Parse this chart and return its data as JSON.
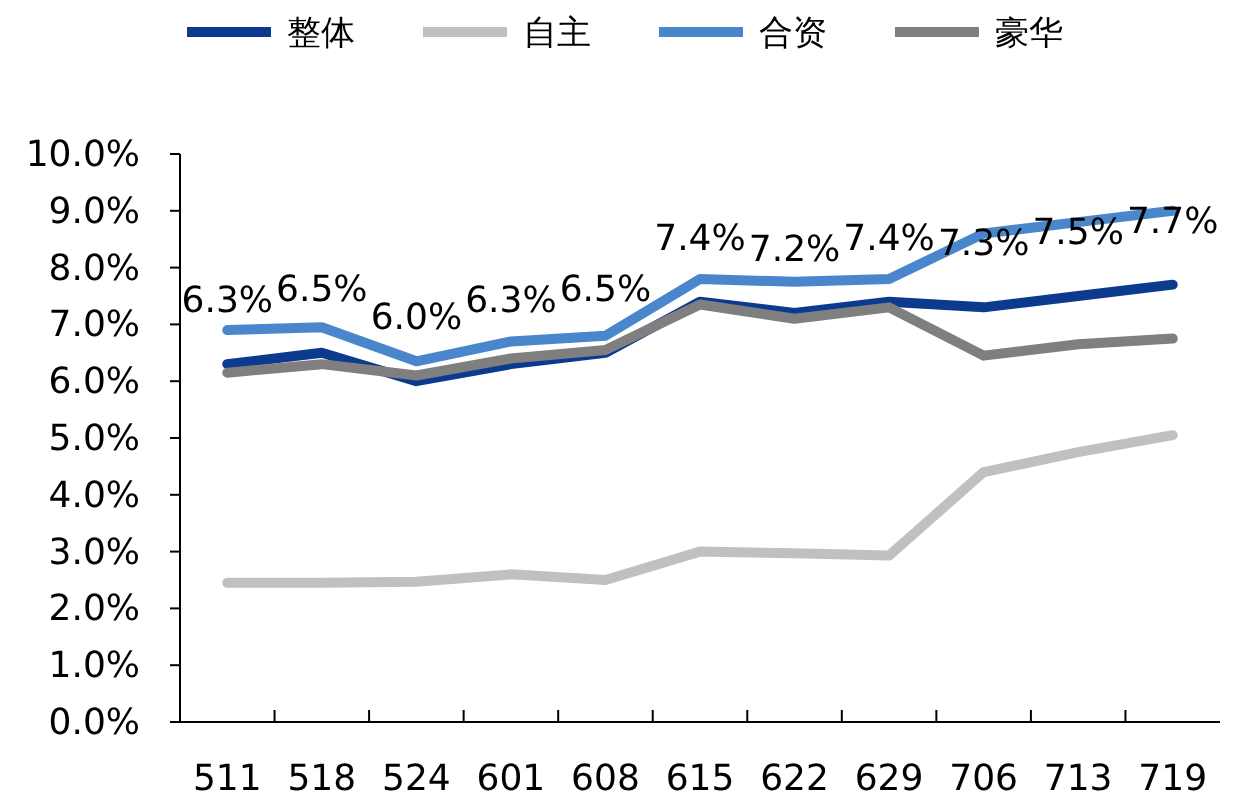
{
  "chart_data": {
    "type": "line",
    "categories": [
      "511",
      "518",
      "524",
      "601",
      "608",
      "615",
      "622",
      "629",
      "706",
      "713",
      "719"
    ],
    "series": [
      {
        "name": "整体",
        "color": "#0b3a8f",
        "values": [
          6.3,
          6.5,
          6.0,
          6.3,
          6.5,
          7.4,
          7.2,
          7.4,
          7.3,
          7.5,
          7.7
        ],
        "value_labels": [
          "6.3%",
          "6.5%",
          "6.0%",
          "6.3%",
          "6.5%",
          "7.4%",
          "7.2%",
          "7.4%",
          "7.3%",
          "7.5%",
          "7.7%"
        ]
      },
      {
        "name": "自主",
        "color": "#c0c0c0",
        "values": [
          2.45,
          2.45,
          2.47,
          2.6,
          2.5,
          3.0,
          2.97,
          2.93,
          4.4,
          4.75,
          5.05
        ]
      },
      {
        "name": "合资",
        "color": "#4a86cc",
        "values": [
          6.9,
          6.95,
          6.35,
          6.7,
          6.8,
          7.8,
          7.75,
          7.8,
          8.6,
          8.8,
          9.0
        ]
      },
      {
        "name": "豪华",
        "color": "#7f7f7f",
        "values": [
          6.15,
          6.3,
          6.1,
          6.4,
          6.55,
          7.35,
          7.1,
          7.3,
          6.45,
          6.65,
          6.75
        ]
      }
    ],
    "ylim": [
      0,
      10
    ],
    "yticks": [
      {
        "value": 0,
        "label": "0.0%"
      },
      {
        "value": 1,
        "label": "1.0%"
      },
      {
        "value": 2,
        "label": "2.0%"
      },
      {
        "value": 3,
        "label": "3.0%"
      },
      {
        "value": 4,
        "label": "4.0%"
      },
      {
        "value": 5,
        "label": "5.0%"
      },
      {
        "value": 6,
        "label": "6.0%"
      },
      {
        "value": 7,
        "label": "7.0%"
      },
      {
        "value": 8,
        "label": "8.0%"
      },
      {
        "value": 9,
        "label": "9.0%"
      },
      {
        "value": 10,
        "label": "10.0%"
      }
    ],
    "legend": "top",
    "grid": false
  }
}
